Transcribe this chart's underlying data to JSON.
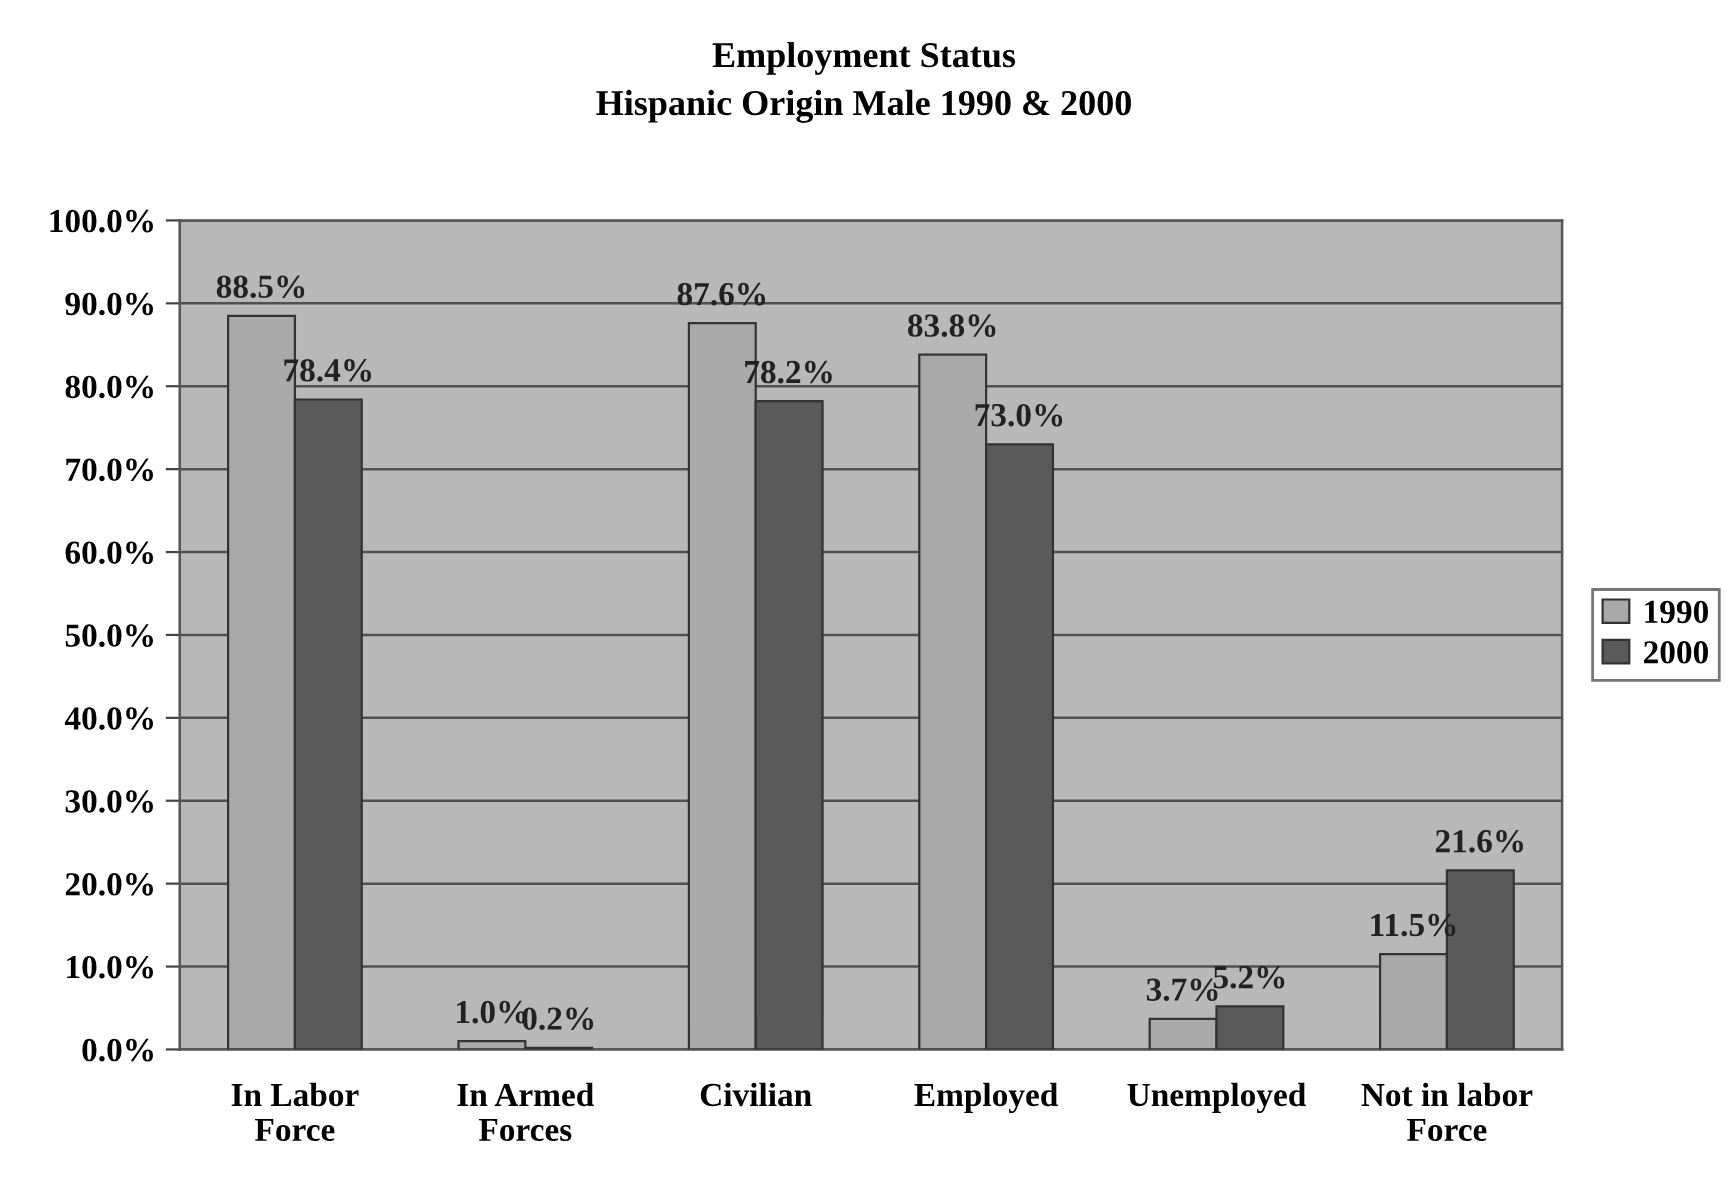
{
  "chart_data": {
    "type": "bar",
    "title": "Employment Status",
    "subtitle": "Hispanic Origin Male 1990 & 2000",
    "categories": [
      "In Labor\nForce",
      "In Armed\nForces",
      "Civilian",
      "Employed",
      "Unemployed",
      "Not in labor\nForce"
    ],
    "series": [
      {
        "name": "1990",
        "color": "#a9a9a9",
        "values": [
          88.5,
          1.0,
          87.6,
          83.8,
          3.7,
          11.5
        ],
        "value_labels": [
          "88.5%",
          "1.0%",
          "87.6%",
          "83.8%",
          "3.7%",
          "11.5%"
        ]
      },
      {
        "name": "2000",
        "color": "#5a5a5a",
        "values": [
          78.4,
          0.2,
          78.2,
          73.0,
          5.2,
          21.6
        ],
        "value_labels": [
          "78.4%",
          "0.2%",
          "78.2%",
          "73.0%",
          "5.2%",
          "21.6%"
        ]
      }
    ],
    "ylim": [
      0,
      100
    ],
    "yticks": [
      {
        "value": 0,
        "label": "0.0%"
      },
      {
        "value": 10,
        "label": "10.0%"
      },
      {
        "value": 20,
        "label": "20.0%"
      },
      {
        "value": 30,
        "label": "30.0%"
      },
      {
        "value": 40,
        "label": "40.0%"
      },
      {
        "value": 50,
        "label": "50.0%"
      },
      {
        "value": 60,
        "label": "60.0%"
      },
      {
        "value": 70,
        "label": "70.0%"
      },
      {
        "value": 80,
        "label": "80.0%"
      },
      {
        "value": 90,
        "label": "90.0%"
      },
      {
        "value": 100,
        "label": "100.0%"
      }
    ],
    "grid": "y",
    "legend": "right"
  }
}
